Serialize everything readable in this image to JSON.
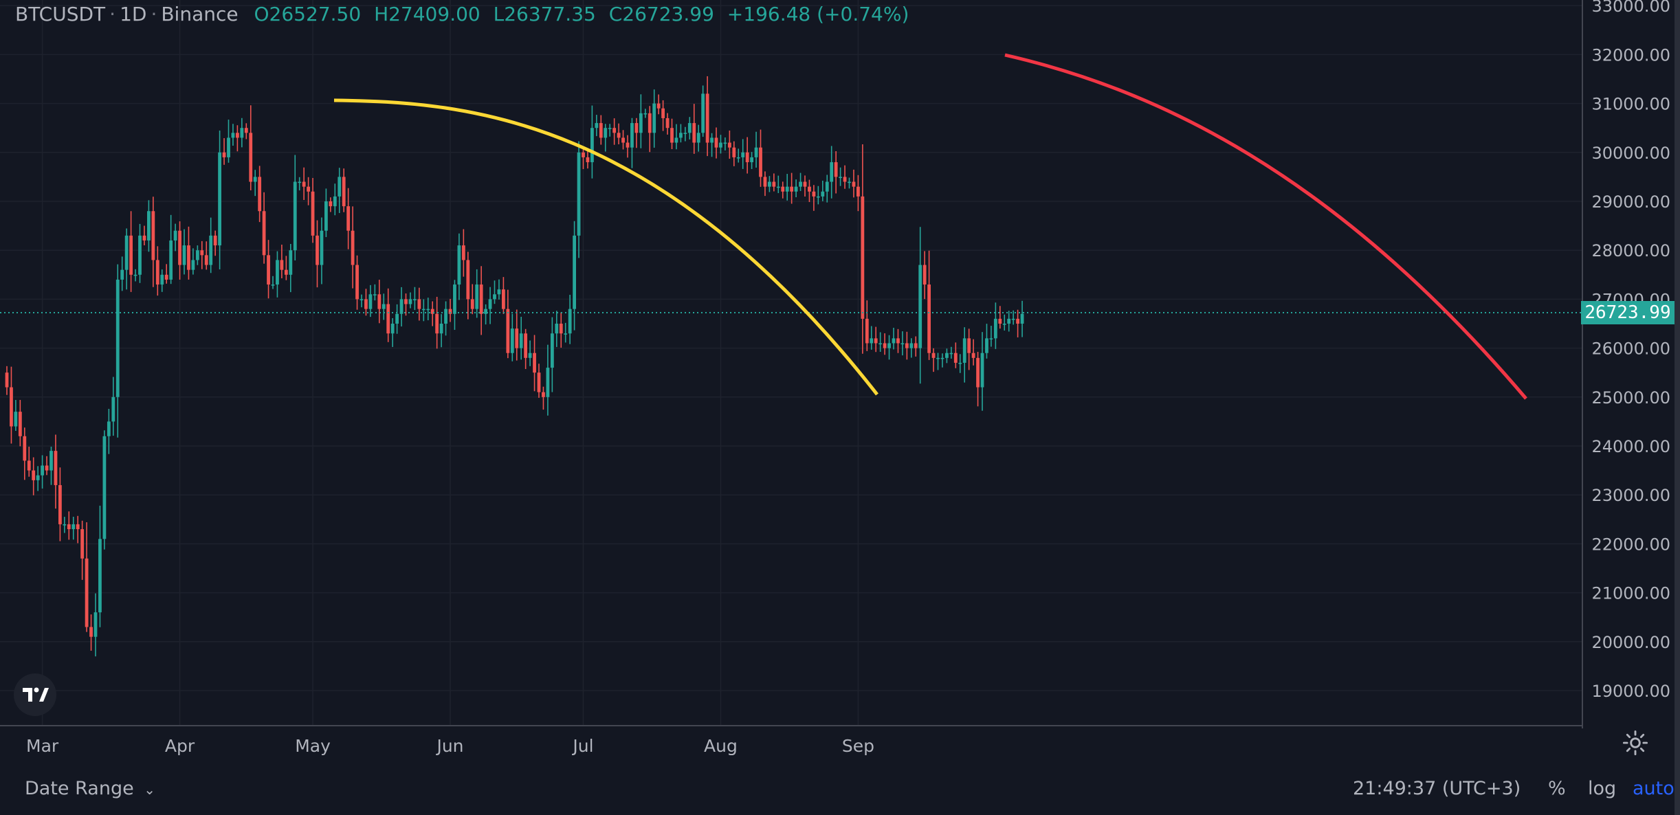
{
  "legend": {
    "symbol": "BTCUSDT",
    "interval": "1D",
    "exchange": "Binance",
    "open": "O26527.50",
    "high": "H27409.00",
    "low": "L26377.35",
    "close": "C26723.99",
    "change": "+196.48 (+0.74%)"
  },
  "bottom": {
    "date_range": "Date Range",
    "clock": "21:49:37 (UTC+3)",
    "pct": "%",
    "log": "log",
    "auto": "auto"
  },
  "colors": {
    "up": "#26a69a",
    "down": "#ef5350",
    "yellow_curve": "#fdd835",
    "red_curve": "#f23645",
    "background": "#131722"
  },
  "chart_data": {
    "type": "candlestick",
    "title": "BTCUSDT · 1D · Binance",
    "ylim": [
      18300,
      33000
    ],
    "price_scale_ticks": [
      "19000.00",
      "20000.00",
      "21000.00",
      "22000.00",
      "23000.00",
      "24000.00",
      "25000.00",
      "26000.00",
      "27000.00",
      "28000.00",
      "29000.00",
      "30000.00",
      "31000.00",
      "32000.00",
      "33000.00"
    ],
    "x_tick_labels": [
      {
        "label": "Mar",
        "date": "2023-03-01"
      },
      {
        "label": "Apr",
        "date": "2023-04-01"
      },
      {
        "label": "May",
        "date": "2023-05-01"
      },
      {
        "label": "Jun",
        "date": "2023-06-01"
      },
      {
        "label": "Jul",
        "date": "2023-07-01"
      },
      {
        "label": "Aug",
        "date": "2023-08-01"
      },
      {
        "label": "Sep",
        "date": "2023-09-01"
      }
    ],
    "last_price": "26723.99",
    "last_price_value": 26723.99,
    "start_date": "2023-02-21",
    "closes": [
      25200,
      24400,
      24700,
      24200,
      23700,
      23500,
      23300,
      23400,
      23600,
      23500,
      23900,
      23200,
      22400,
      22400,
      22300,
      22400,
      22300,
      21700,
      20300,
      20100,
      20600,
      22100,
      24200,
      24500,
      25000,
      27400,
      27600,
      28300,
      27500,
      27500,
      28300,
      28200,
      28800,
      27800,
      27300,
      27500,
      27400,
      28200,
      28400,
      27700,
      28100,
      27600,
      27800,
      28000,
      27900,
      27700,
      28300,
      28100,
      30000,
      29900,
      30300,
      30400,
      30300,
      30500,
      30400,
      29400,
      29500,
      28800,
      27900,
      27300,
      27300,
      27800,
      27600,
      27500,
      28000,
      29400,
      29400,
      29300,
      29200,
      28300,
      27700,
      28400,
      29000,
      28900,
      29100,
      29500,
      28900,
      28400,
      27700,
      27000,
      27000,
      26800,
      27100,
      27100,
      26800,
      26900,
      26300,
      26500,
      26700,
      27000,
      26900,
      27000,
      27000,
      26800,
      26800,
      26800,
      26700,
      26300,
      26500,
      26800,
      26700,
      27300,
      28100,
      27800,
      27000,
      26800,
      27300,
      26700,
      26800,
      27000,
      27100,
      27200,
      26800,
      25900,
      26400,
      26000,
      26300,
      25800,
      25900,
      25500,
      25100,
      25000,
      25600,
      26300,
      26500,
      26300,
      26300,
      26800,
      28300,
      30000,
      29900,
      29800,
      30500,
      30600,
      30300,
      30500,
      30500,
      30400,
      30300,
      30200,
      30100,
      30600,
      30400,
      30800,
      30800,
      30400,
      31000,
      30900,
      30700,
      30500,
      30200,
      30300,
      30400,
      30400,
      30600,
      30200,
      30400,
      31200,
      30200,
      30300,
      30100,
      30200,
      30200,
      30100,
      29900,
      29900,
      30000,
      29800,
      29900,
      30100,
      29500,
      29300,
      29400,
      29300,
      29300,
      29200,
      29300,
      29200,
      29300,
      29400,
      29300,
      29200,
      29100,
      29100,
      29200,
      29400,
      29800,
      29500,
      29500,
      29400,
      29400,
      29300,
      29100,
      26600,
      26100,
      26200,
      26100,
      26100,
      26000,
      26100,
      26200,
      26100,
      26100,
      26000,
      26100,
      26000,
      27700,
      27300,
      25900,
      25800,
      25800,
      25800,
      25900,
      25900,
      25700,
      25700,
      26200,
      25900,
      25800,
      25200,
      25900,
      26200,
      26200,
      26600,
      26500,
      26500,
      26600,
      26600,
      26500,
      26700
    ]
  }
}
